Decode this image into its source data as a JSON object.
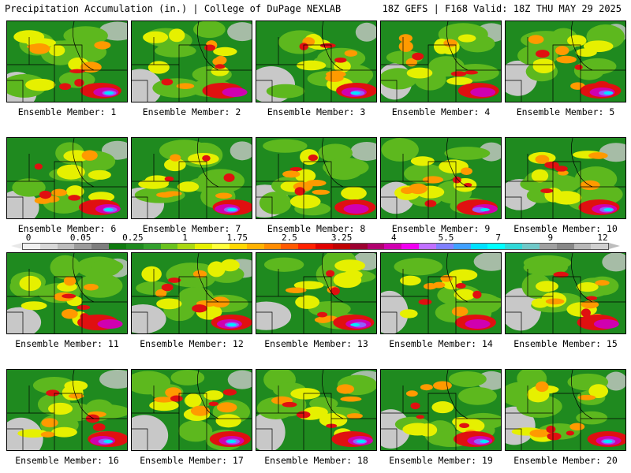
{
  "header": {
    "title": "Precipitation Accumulation (in.) | College of DuPage NEXLAB",
    "valid": "18Z GEFS | F168 Valid: 18Z THU MAY 29 2025"
  },
  "members": [
    {
      "label": "Ensemble Member: 1",
      "peak": "high"
    },
    {
      "label": "Ensemble Member: 2",
      "peak": "med"
    },
    {
      "label": "Ensemble Member: 3",
      "peak": "high"
    },
    {
      "label": "Ensemble Member: 4",
      "peak": "med"
    },
    {
      "label": "Ensemble Member: 5",
      "peak": "high"
    },
    {
      "label": "Ensemble Member: 6",
      "peak": "high"
    },
    {
      "label": "Ensemble Member: 7",
      "peak": "high"
    },
    {
      "label": "Ensemble Member: 8",
      "peak": "med"
    },
    {
      "label": "Ensemble Member: 9",
      "peak": "high"
    },
    {
      "label": "Ensemble Member: 10",
      "peak": "high"
    },
    {
      "label": "Ensemble Member: 11",
      "peak": "med"
    },
    {
      "label": "Ensemble Member: 12",
      "peak": "high"
    },
    {
      "label": "Ensemble Member: 13",
      "peak": "high"
    },
    {
      "label": "Ensemble Member: 14",
      "peak": "med"
    },
    {
      "label": "Ensemble Member: 15",
      "peak": "med"
    },
    {
      "label": "Ensemble Member: 16",
      "peak": "high"
    },
    {
      "label": "Ensemble Member: 17",
      "peak": "high"
    },
    {
      "label": "Ensemble Member: 18",
      "peak": "high"
    },
    {
      "label": "Ensemble Member: 19",
      "peak": "high"
    },
    {
      "label": "Ensemble Member: 20",
      "peak": "high"
    }
  ],
  "colorbar": {
    "ticks": [
      "0",
      "0.05",
      "0.25",
      "1",
      "1.75",
      "2.5",
      "3.25",
      "4",
      "5.5",
      "7",
      "9",
      "12"
    ],
    "colors": [
      "#f0f0f0",
      "#d8d8d8",
      "#bdbdbd",
      "#9c9c9c",
      "#7e7e7e",
      "#0f7a0f",
      "#1f8a1f",
      "#34a02e",
      "#6ac21e",
      "#aad813",
      "#e6f000",
      "#ffff3c",
      "#ffd800",
      "#ffb200",
      "#ff8c00",
      "#ff5a00",
      "#ff2200",
      "#e00000",
      "#c00000",
      "#9c0030",
      "#b0006e",
      "#d000b0",
      "#f000f0",
      "#c070ff",
      "#8080ff",
      "#40a0ff",
      "#00e0ff",
      "#00ffff",
      "#30d8d8",
      "#70c8c8",
      "#a0a0a0",
      "#888888",
      "#b8b8b8",
      "#d0d0d0"
    ]
  },
  "map_colors": {
    "green": "#1f8a1f",
    "light_green": "#5db81e",
    "yellow": "#e6f000",
    "orange": "#ff9a00",
    "red": "#e01010",
    "magenta": "#d000b0",
    "purple": "#9060ff",
    "cyan": "#00e8ff",
    "gray": "#c8c8c8",
    "lines": "#000000"
  }
}
